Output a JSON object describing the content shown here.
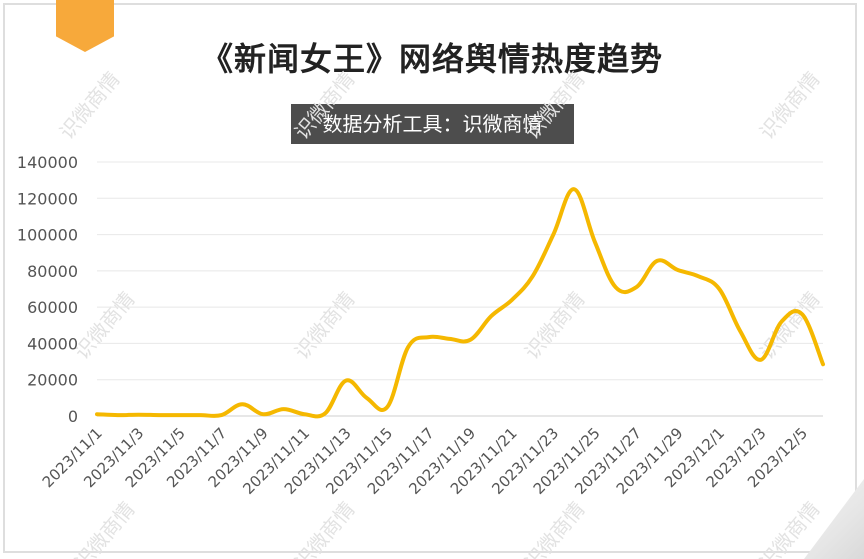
{
  "title": "《新闻女王》网络舆情热度趋势",
  "subtitle": "数据分析工具：识微商情",
  "watermark": "识微商情",
  "colors": {
    "line": "#f5b800",
    "ribbon": "#f7a93b",
    "subtitle_bg": "#4d4d4d",
    "grid": "#e8e8e8",
    "axis_text": "#555555"
  },
  "chart_data": {
    "type": "line",
    "title": "《新闻女王》网络舆情热度趋势",
    "xlabel": "",
    "ylabel": "",
    "ylim": [
      0,
      140000
    ],
    "yticks": [
      0,
      20000,
      40000,
      60000,
      80000,
      100000,
      120000,
      140000
    ],
    "xtick_labels": [
      "2023/11/1",
      "2023/11/3",
      "2023/11/5",
      "2023/11/7",
      "2023/11/9",
      "2023/11/11",
      "2023/11/13",
      "2023/11/15",
      "2023/11/17",
      "2023/11/19",
      "2023/11/21",
      "2023/11/23",
      "2023/11/25",
      "2023/11/27",
      "2023/11/29",
      "2023/12/1",
      "2023/12/3",
      "2023/12/5"
    ],
    "grid": true,
    "x": [
      "2023/11/1",
      "2023/11/2",
      "2023/11/3",
      "2023/11/4",
      "2023/11/5",
      "2023/11/6",
      "2023/11/7",
      "2023/11/8",
      "2023/11/9",
      "2023/11/10",
      "2023/11/11",
      "2023/11/12",
      "2023/11/13",
      "2023/11/14",
      "2023/11/15",
      "2023/11/16",
      "2023/11/17",
      "2023/11/18",
      "2023/11/19",
      "2023/11/20",
      "2023/11/21",
      "2023/11/22",
      "2023/11/23",
      "2023/11/24",
      "2023/11/25",
      "2023/11/26",
      "2023/11/27",
      "2023/11/28",
      "2023/11/29",
      "2023/11/30",
      "2023/12/1",
      "2023/12/2",
      "2023/12/3",
      "2023/12/4",
      "2023/12/5",
      "2023/12/6"
    ],
    "series": [
      {
        "values": [
          1000,
          500,
          700,
          500,
          500,
          500,
          500,
          6500,
          1000,
          3800,
          1000,
          1500,
          19500,
          10000,
          5000,
          38000,
          43500,
          42500,
          42000,
          55000,
          64000,
          77000,
          100000,
          125000,
          96000,
          71000,
          71000,
          85500,
          80500,
          77000,
          70000,
          47000,
          31000,
          52000,
          56000,
          28500
        ]
      }
    ]
  }
}
